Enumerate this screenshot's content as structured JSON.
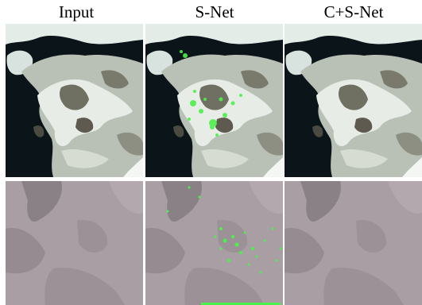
{
  "figure": {
    "columns": [
      "Input",
      "S-Net",
      "C+S-Net"
    ]
  }
}
